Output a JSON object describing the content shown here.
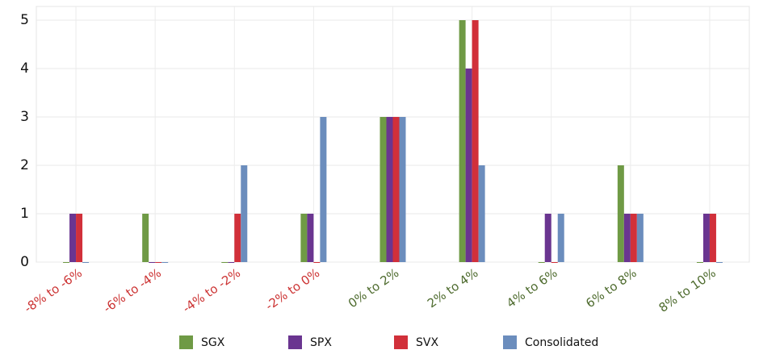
{
  "chart_data": {
    "type": "bar",
    "categories": [
      "-8% to -6%",
      "-6% to -4%",
      "-4% to -2%",
      "-2% to 0%",
      "0% to 2%",
      "2% to 4%",
      "4% to 6%",
      "6% to 8%",
      "8% to 10%"
    ],
    "category_colors": [
      "#cc3333",
      "#cc3333",
      "#cc3333",
      "#cc3333",
      "#4e6b2e",
      "#4e6b2e",
      "#4e6b2e",
      "#4e6b2e",
      "#4e6b2e"
    ],
    "series": [
      {
        "name": "SGX",
        "color": "#6f9a45",
        "values": [
          0,
          1,
          0,
          1,
          3,
          5,
          0,
          2,
          0
        ]
      },
      {
        "name": "SPX",
        "color": "#6a3590",
        "values": [
          1,
          0,
          0,
          1,
          3,
          4,
          1,
          1,
          1
        ]
      },
      {
        "name": "SVX",
        "color": "#d1303a",
        "values": [
          1,
          0,
          1,
          0,
          3,
          5,
          0,
          1,
          1
        ]
      },
      {
        "name": "Consolidated",
        "color": "#6b8dbd",
        "values": [
          0,
          0,
          2,
          3,
          3,
          2,
          1,
          1,
          0
        ]
      }
    ],
    "ylim": [
      0,
      5
    ],
    "yticks": [
      0,
      1,
      2,
      3,
      4,
      5
    ],
    "grid": true,
    "legend": "bottom"
  }
}
